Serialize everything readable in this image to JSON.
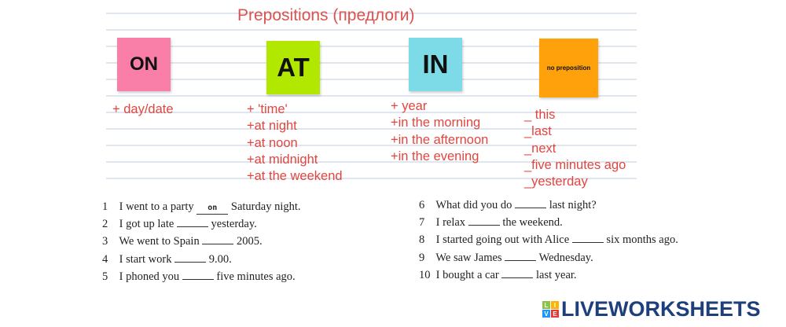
{
  "title": "Prepositions (предлоги)",
  "cards": [
    {
      "label": "ON",
      "color": "#f97fa9"
    },
    {
      "label": "AT",
      "color": "#b2e800"
    },
    {
      "label": "IN",
      "color": "#7ddbe8"
    },
    {
      "label": "no preposition",
      "color": "#ffa10a"
    }
  ],
  "rules": {
    "on": [
      "+ day/date"
    ],
    "at": [
      "+ 'time'",
      "+at night",
      "+at noon",
      "+at midnight",
      "+at the weekend"
    ],
    "in": [
      "+ year",
      "+in the morning",
      "+in the afternoon",
      "+in the evening"
    ],
    "none": [
      "_ this",
      "_last",
      "_next",
      "_five minutes ago",
      "_yesterday"
    ]
  },
  "exercises": [
    {
      "n": "1",
      "before": "I went to a party",
      "answer": "on",
      "after": "Saturday night."
    },
    {
      "n": "2",
      "before": "I got up late",
      "answer": "",
      "after": "yesterday."
    },
    {
      "n": "3",
      "before": "We went to Spain",
      "answer": "",
      "after": "2005."
    },
    {
      "n": "4",
      "before": "I start work",
      "answer": "",
      "after": "9.00."
    },
    {
      "n": "5",
      "before": "I phoned you",
      "answer": "",
      "after": "five minutes ago."
    },
    {
      "n": "6",
      "before": "What did you do",
      "answer": "",
      "after": "last night?"
    },
    {
      "n": "7",
      "before": "I relax",
      "answer": "",
      "after": "the weekend."
    },
    {
      "n": "8",
      "before": "I started going out with Alice",
      "answer": "",
      "after": "six months ago."
    },
    {
      "n": "9",
      "before": "We saw James",
      "answer": "",
      "after": "Wednesday."
    },
    {
      "n": "10",
      "before": "I bought a car",
      "answer": "",
      "after": "last year."
    }
  ],
  "logo": {
    "text": "LIVEWORKSHEETS",
    "letters": [
      "L",
      "I",
      "V",
      "E"
    ]
  }
}
